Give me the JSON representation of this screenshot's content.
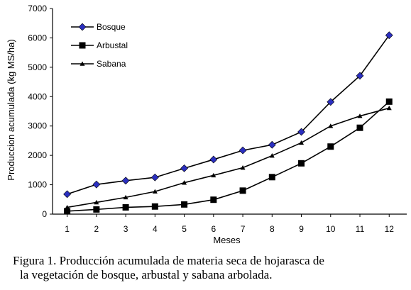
{
  "chart_data": {
    "type": "line",
    "title": "",
    "xlabel": "Meses",
    "ylabel": "Produccion acumulada (kg MS/ha)",
    "x": [
      1,
      2,
      3,
      4,
      5,
      6,
      7,
      8,
      9,
      10,
      11,
      12
    ],
    "ylim": [
      0,
      7000
    ],
    "yticks": [
      0,
      1000,
      2000,
      3000,
      4000,
      5000,
      6000,
      7000
    ],
    "grid": false,
    "legend_position": "top-left",
    "series": [
      {
        "name": "Bosque",
        "marker": "diamond",
        "color": "#2b2fbf",
        "values": [
          680,
          1010,
          1140,
          1250,
          1560,
          1860,
          2170,
          2360,
          2800,
          3820,
          4710,
          6090
        ]
      },
      {
        "name": "Arbustal",
        "marker": "square",
        "color": "#000000",
        "values": [
          100,
          160,
          230,
          260,
          330,
          490,
          800,
          1260,
          1730,
          2300,
          2940,
          3830
        ]
      },
      {
        "name": "Sabana",
        "marker": "triangle",
        "color": "#000000",
        "values": [
          230,
          400,
          570,
          770,
          1070,
          1320,
          1580,
          1990,
          2430,
          3000,
          3340,
          3610
        ]
      }
    ]
  },
  "caption": {
    "line1": "Figura 1. Producción acumulada de materia seca de hojarasca de",
    "line2": "la vegetación de bosque, arbustal y sabana arbolada."
  }
}
